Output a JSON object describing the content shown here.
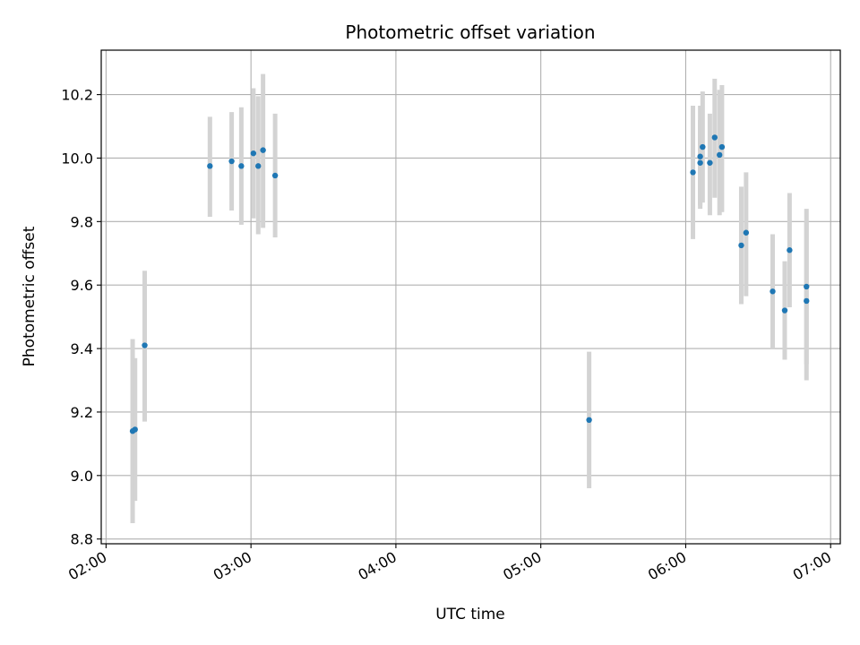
{
  "chart_data": {
    "type": "scatter",
    "title": "Photometric offset variation",
    "xlabel": "UTC time",
    "ylabel": "Photometric offset",
    "x_axis_type": "time",
    "xlim": [
      "01:58",
      "07:04"
    ],
    "ylim": [
      8.785,
      10.34
    ],
    "xticks": [
      "02:00",
      "03:00",
      "04:00",
      "05:00",
      "06:00",
      "07:00"
    ],
    "yticks": [
      8.8,
      9.0,
      9.2,
      9.4,
      9.6,
      9.8,
      10.0,
      10.2
    ],
    "ytick_labels": [
      "8.8",
      "9.0",
      "9.2",
      "9.4",
      "9.6",
      "9.8",
      "10.0",
      "10.2"
    ],
    "grid": true,
    "point_color": "#1f77b4",
    "errorbar_color": "#d3d3d3",
    "points": [
      {
        "x": "02:11",
        "y": 9.14,
        "ylow": 8.85,
        "yhigh": 9.43
      },
      {
        "x": "02:12",
        "y": 9.145,
        "ylow": 8.92,
        "yhigh": 9.37
      },
      {
        "x": "02:16",
        "y": 9.41,
        "ylow": 9.17,
        "yhigh": 9.645
      },
      {
        "x": "02:43",
        "y": 9.975,
        "ylow": 9.815,
        "yhigh": 10.13
      },
      {
        "x": "02:52",
        "y": 9.99,
        "ylow": 9.835,
        "yhigh": 10.145
      },
      {
        "x": "02:56",
        "y": 9.975,
        "ylow": 9.79,
        "yhigh": 10.16
      },
      {
        "x": "03:01",
        "y": 10.015,
        "ylow": 9.81,
        "yhigh": 10.22
      },
      {
        "x": "03:03",
        "y": 9.975,
        "ylow": 9.76,
        "yhigh": 10.195
      },
      {
        "x": "03:05",
        "y": 10.025,
        "ylow": 9.78,
        "yhigh": 10.265
      },
      {
        "x": "03:10",
        "y": 9.945,
        "ylow": 9.75,
        "yhigh": 10.14
      },
      {
        "x": "05:20",
        "y": 9.175,
        "ylow": 8.96,
        "yhigh": 9.39
      },
      {
        "x": "06:03",
        "y": 9.955,
        "ylow": 9.745,
        "yhigh": 10.165
      },
      {
        "x": "06:06",
        "y": 9.985,
        "ylow": 9.85,
        "yhigh": 10.12
      },
      {
        "x": "06:06",
        "y": 10.005,
        "ylow": 9.84,
        "yhigh": 10.165
      },
      {
        "x": "06:07",
        "y": 10.035,
        "ylow": 9.86,
        "yhigh": 10.21
      },
      {
        "x": "06:10",
        "y": 9.985,
        "ylow": 9.82,
        "yhigh": 10.14
      },
      {
        "x": "06:12",
        "y": 10.065,
        "ylow": 9.875,
        "yhigh": 10.25
      },
      {
        "x": "06:14",
        "y": 10.01,
        "ylow": 9.82,
        "yhigh": 10.215
      },
      {
        "x": "06:15",
        "y": 10.035,
        "ylow": 9.83,
        "yhigh": 10.23
      },
      {
        "x": "06:23",
        "y": 9.725,
        "ylow": 9.54,
        "yhigh": 9.91
      },
      {
        "x": "06:25",
        "y": 9.765,
        "ylow": 9.565,
        "yhigh": 9.955
      },
      {
        "x": "06:36",
        "y": 9.58,
        "ylow": 9.4,
        "yhigh": 9.76
      },
      {
        "x": "06:41",
        "y": 9.52,
        "ylow": 9.365,
        "yhigh": 9.675
      },
      {
        "x": "06:43",
        "y": 9.71,
        "ylow": 9.53,
        "yhigh": 9.89
      },
      {
        "x": "06:50",
        "y": 9.595,
        "ylow": 9.35,
        "yhigh": 9.84
      },
      {
        "x": "06:50",
        "y": 9.55,
        "ylow": 9.3,
        "yhigh": 9.8
      }
    ]
  }
}
